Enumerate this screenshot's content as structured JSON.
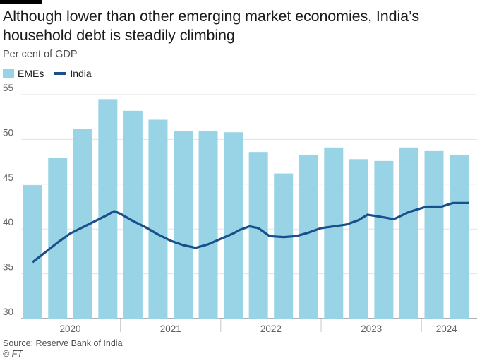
{
  "header": {
    "title": "Although lower than other emerging market economies, India’s household debt is steadily climbing",
    "subtitle": "Per cent of GDP"
  },
  "legend": {
    "emes_label": "EMEs",
    "india_label": "India"
  },
  "colors": {
    "bars": "#99d3e6",
    "line": "#17508a",
    "grid": "#e3e3e3",
    "axis": "#66605c",
    "text": "#66605c"
  },
  "footer": {
    "source": "Source: Reserve Bank of India",
    "credit": "© FT"
  },
  "chart_data": {
    "type": "bar",
    "title": "Although lower than other emerging market economies, India’s household debt is steadily climbing",
    "subtitle": "Per cent of GDP",
    "ylabel": "",
    "xlabel": "",
    "ylim": [
      30,
      55
    ],
    "yticks": [
      30,
      35,
      40,
      45,
      50,
      55
    ],
    "grid": true,
    "legend_position": "top-left",
    "quarters": [
      "2020 Q1",
      "2020 Q2",
      "2020 Q3",
      "2020 Q4",
      "2021 Q1",
      "2021 Q2",
      "2021 Q3",
      "2021 Q4",
      "2022 Q1",
      "2022 Q2",
      "2022 Q3",
      "2022 Q4",
      "2023 Q1",
      "2023 Q2",
      "2023 Q3",
      "2023 Q4",
      "2024 Q1",
      "2024 Q2"
    ],
    "year_labels": [
      {
        "label": "2020",
        "start": 0,
        "end": 3
      },
      {
        "label": "2021",
        "start": 4,
        "end": 7
      },
      {
        "label": "2022",
        "start": 8,
        "end": 11
      },
      {
        "label": "2023",
        "start": 12,
        "end": 15
      },
      {
        "label": "2024",
        "start": 16,
        "end": 17
      }
    ],
    "series": [
      {
        "name": "EMEs",
        "type": "bar",
        "values": [
          44.9,
          47.9,
          51.2,
          54.5,
          53.2,
          52.2,
          50.9,
          50.9,
          50.8,
          48.6,
          46.2,
          48.3,
          49.1,
          47.8,
          47.6,
          49.1,
          48.7,
          48.3
        ]
      },
      {
        "name": "India",
        "type": "line",
        "points": [
          [
            0,
            36.3
          ],
          [
            0.5,
            37.4
          ],
          [
            1,
            38.5
          ],
          [
            1.5,
            39.5
          ],
          [
            2,
            40.2
          ],
          [
            2.5,
            40.9
          ],
          [
            3,
            41.6
          ],
          [
            3.25,
            42.0
          ],
          [
            3.5,
            41.7
          ],
          [
            4,
            40.9
          ],
          [
            4.5,
            40.2
          ],
          [
            5,
            39.4
          ],
          [
            5.5,
            38.7
          ],
          [
            6,
            38.2
          ],
          [
            6.5,
            37.9
          ],
          [
            7,
            38.3
          ],
          [
            7.5,
            38.9
          ],
          [
            8,
            39.5
          ],
          [
            8.25,
            39.9
          ],
          [
            8.65,
            40.3
          ],
          [
            9,
            40.1
          ],
          [
            9.45,
            39.2
          ],
          [
            10,
            39.1
          ],
          [
            10.5,
            39.2
          ],
          [
            11,
            39.6
          ],
          [
            11.5,
            40.1
          ],
          [
            12,
            40.3
          ],
          [
            12.5,
            40.5
          ],
          [
            13,
            41.0
          ],
          [
            13.35,
            41.6
          ],
          [
            14,
            41.3
          ],
          [
            14.4,
            41.1
          ],
          [
            15,
            41.9
          ],
          [
            15.35,
            42.2
          ],
          [
            15.7,
            42.5
          ],
          [
            16.3,
            42.5
          ],
          [
            16.75,
            42.9
          ],
          [
            17.2,
            42.9
          ],
          [
            17.4,
            42.9
          ]
        ]
      }
    ]
  }
}
